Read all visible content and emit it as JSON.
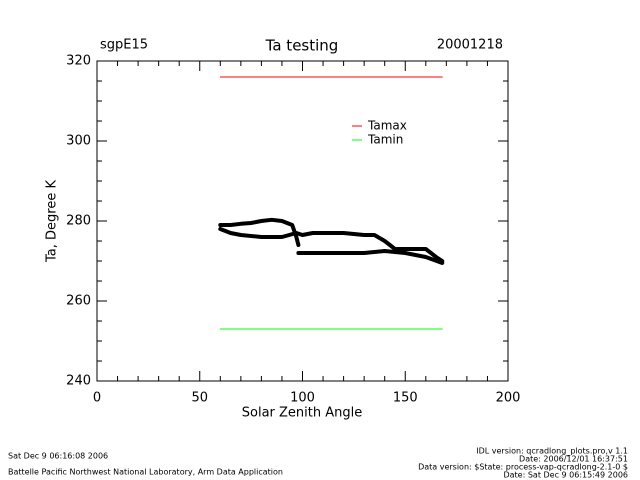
{
  "chart_data": {
    "type": "line",
    "title": "Ta testing",
    "subtitle_left": "sgpE15",
    "subtitle_right": "20001218",
    "x_label": "Solar Zenith Angle",
    "y_label": "Ta, Degree K",
    "xlim": [
      0,
      200
    ],
    "xticks": [
      0,
      50,
      100,
      150,
      200
    ],
    "xminor": 5,
    "ylim": [
      240,
      320
    ],
    "yticks": [
      240,
      260,
      280,
      300,
      320
    ],
    "yminor": 4,
    "series": [
      {
        "name": "Tamax",
        "color": "#ff0000",
        "x": [
          60,
          168
        ],
        "values": [
          316,
          316
        ]
      },
      {
        "name": "Tamin",
        "color": "#00ff00",
        "x": [
          60,
          168
        ],
        "values": [
          253,
          253
        ]
      },
      {
        "color": "#000000",
        "x": [
          60,
          65,
          70,
          75,
          80,
          85,
          90,
          95,
          97,
          98
        ],
        "values": [
          279,
          279,
          279.3,
          279.5,
          280,
          280.3,
          280,
          279,
          276,
          274
        ]
      },
      {
        "color": "#000000",
        "x": [
          60,
          65,
          70,
          80,
          90,
          97,
          100,
          105,
          110,
          120,
          130,
          135,
          140,
          145,
          150,
          155,
          160,
          165,
          168
        ],
        "values": [
          278,
          277,
          276.5,
          276,
          276,
          277,
          276.5,
          277,
          277,
          277,
          276.5,
          276.5,
          275,
          273,
          273,
          273,
          273,
          271,
          270
        ]
      },
      {
        "color": "#000000",
        "x": [
          98,
          110,
          120,
          130,
          140,
          150,
          160,
          168
        ],
        "values": [
          272,
          272,
          272,
          272,
          272.5,
          272,
          271,
          269.5
        ]
      }
    ]
  },
  "footer": {
    "left_date": "Sat Dec  9 06:16:08 2006",
    "left_org": "Battelle Pacific Northwest National Laboratory, Arm Data Application",
    "right": [
      "IDL version: qcradlong_plots.pro,v 1.1",
      "Date: 2006/12/01 16:37:51",
      "Data version: $State: process-vap-qcradlong-2.1-0 $",
      "Date: Sat Dec  9 06:15:49 2006"
    ]
  }
}
